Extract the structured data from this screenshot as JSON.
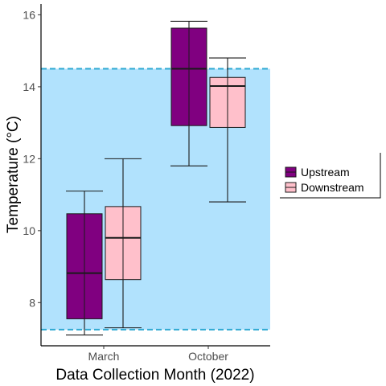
{
  "chart_data": {
    "type": "boxplot",
    "title": "",
    "xlabel": "Data Collection Month (2022)",
    "ylabel": "Temperature (°C)",
    "categories": [
      "March",
      "October"
    ],
    "ylim": [
      6.8,
      16.3
    ],
    "yticks": [
      8,
      10,
      12,
      14,
      16
    ],
    "grid": false,
    "reference_band": {
      "ymin": 7.25,
      "ymax": 14.5,
      "fill": "#b1e2fd",
      "line_color": "#2fa9d3",
      "line_style": "dashed"
    },
    "series": [
      {
        "name": "Upstream",
        "color": "#800080",
        "boxes": [
          {
            "category": "March",
            "min": 7.1,
            "q1": 7.55,
            "median": 8.82,
            "q3": 10.47,
            "max": 11.1
          },
          {
            "category": "October",
            "min": 11.8,
            "q1": 12.92,
            "median": 14.5,
            "q3": 15.63,
            "max": 15.82
          }
        ]
      },
      {
        "name": "Downstream",
        "color": "#ffc0cb",
        "boxes": [
          {
            "category": "March",
            "min": 7.3,
            "q1": 8.64,
            "median": 9.8,
            "q3": 10.67,
            "max": 12.0
          },
          {
            "category": "October",
            "min": 10.8,
            "q1": 12.87,
            "median": 14.02,
            "q3": 14.26,
            "max": 14.8
          }
        ]
      }
    ],
    "legend": {
      "position": "right",
      "entries": [
        "Upstream",
        "Downstream"
      ]
    }
  }
}
